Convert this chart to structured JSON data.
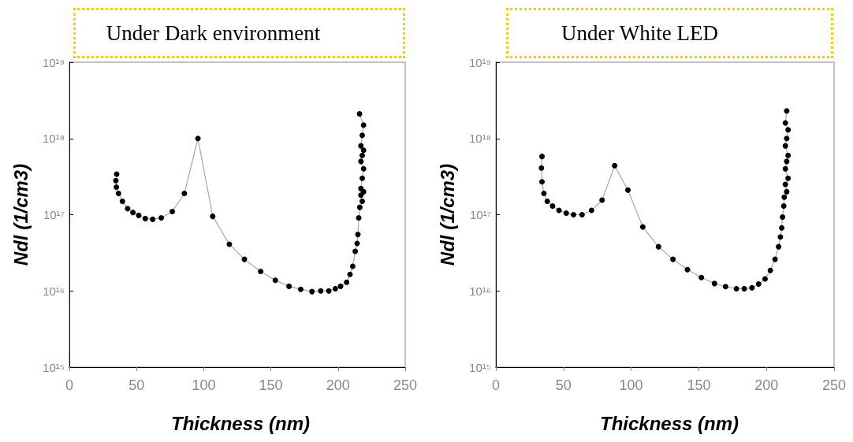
{
  "chart_data": [
    {
      "type": "line",
      "title": "Under Dark environment",
      "xlabel": "Thickness (nm)",
      "ylabel": "Ndl (1/cm3)",
      "log": "y",
      "marker": "circle",
      "grid": false,
      "xlim": [
        0,
        250
      ],
      "xticks": [
        0,
        50,
        100,
        150,
        200,
        250
      ],
      "ylim": [
        1000000000000000.0,
        1e+19
      ],
      "yticks": [
        {
          "value": 1000000000000000.0,
          "label": "10¹⁵"
        },
        {
          "value": 1e+16,
          "label": "10¹⁶"
        },
        {
          "value": 1e+17,
          "label": "10¹⁷"
        },
        {
          "value": 1e+18,
          "label": "10¹⁸"
        },
        {
          "value": 1e+19,
          "label": "10¹⁹"
        }
      ],
      "series": [
        {
          "color": "#000000",
          "x": [
            35.2,
            34.6,
            35.0,
            36.6,
            39.5,
            43.4,
            47.3,
            51.6,
            56.5,
            62,
            68.4,
            76.6,
            85.6,
            95.7,
            106.7,
            119.1,
            130.3,
            142.4,
            153.3,
            163.5,
            172.2,
            180.6,
            187.1,
            193.1,
            198,
            201.9,
            206.4,
            208.9,
            210.9,
            212.8,
            214.2,
            214.8,
            215.4,
            216.2,
            218,
            217,
            219,
            217,
            218,
            219,
            217,
            218,
            219,
            217,
            218,
            219,
            216
          ],
          "values": [
            3.4e+17,
            2.8e+17,
            2.3e+17,
            1.9e+17,
            1.5e+17,
            1.2e+17,
            1.07e+17,
            9.8e+16,
            8.9e+16,
            8.7e+16,
            9.1e+16,
            1.1e+17,
            1.9e+17,
            1e+18,
            9.5e+16,
            4.1e+16,
            2.6e+16,
            1.8e+16,
            1.38e+16,
            1.15e+16,
            1.05e+16,
            9800000000000000.0,
            1e+16,
            1e+16,
            1.07e+16,
            1.15e+16,
            1.3e+16,
            1.65e+16,
            2.1e+16,
            3.3e+16,
            4.2e+16,
            5.5e+16,
            9.1e+16,
            1.25e+17,
            1.5e+17,
            1.8e+17,
            2e+17,
            2.2e+17,
            3e+17,
            4e+17,
            5e+17,
            6e+17,
            7e+17,
            8e+17,
            1.1e+18,
            1.5e+18,
            2.1e+18
          ]
        }
      ]
    },
    {
      "type": "line",
      "title": "Under White LED",
      "xlabel": "Thickness (nm)",
      "ylabel": "Ndl (1/cm3)",
      "log": "y",
      "marker": "circle",
      "grid": false,
      "xlim": [
        0,
        250
      ],
      "xticks": [
        0,
        50,
        100,
        150,
        200,
        250
      ],
      "ylim": [
        1000000000000000.0,
        1e+19
      ],
      "yticks": [
        {
          "value": 1000000000000000.0,
          "label": "10¹⁵"
        },
        {
          "value": 1e+16,
          "label": "10¹⁶"
        },
        {
          "value": 1e+17,
          "label": "10¹⁷"
        },
        {
          "value": 1e+18,
          "label": "10¹⁸"
        },
        {
          "value": 1e+19,
          "label": "10¹⁹"
        }
      ],
      "series": [
        {
          "color": "#000000",
          "x": [
            34.1,
            33.7,
            34.1,
            35.5,
            38.0,
            41.9,
            46.7,
            52.0,
            57.4,
            63.7,
            70.7,
            78.5,
            87.8,
            97.6,
            108.6,
            120.2,
            130.9,
            141.6,
            151.9,
            161.6,
            169.8,
            177.8,
            183.6,
            189.3,
            194.2,
            199.0,
            202.9,
            206.4,
            209.0,
            210.3,
            211.3,
            211.9,
            212.8,
            213.2,
            215,
            214,
            216,
            214,
            215,
            216,
            214,
            215,
            216,
            214,
            215
          ],
          "values": [
            5.8e+17,
            4.1e+17,
            2.7e+17,
            1.9e+17,
            1.5e+17,
            1.3e+17,
            1.14e+17,
            1.05e+17,
            1e+17,
            1e+17,
            1.14e+17,
            1.55e+17,
            4.4e+17,
            2.1e+17,
            6.9e+16,
            3.8e+16,
            2.6e+16,
            1.9e+16,
            1.5e+16,
            1.25e+16,
            1.14e+16,
            1.07e+16,
            1.07e+16,
            1.1e+16,
            1.23e+16,
            1.44e+16,
            1.86e+16,
            2.6e+16,
            3.8e+16,
            5.1e+16,
            6.7e+16,
            9.3e+16,
            1.3e+17,
            1.7e+17,
            2e+17,
            2.5e+17,
            3e+17,
            4e+17,
            5e+17,
            6e+17,
            8e+17,
            1e+18,
            1.3e+18,
            1.6e+18,
            2.3e+18
          ]
        }
      ]
    }
  ]
}
